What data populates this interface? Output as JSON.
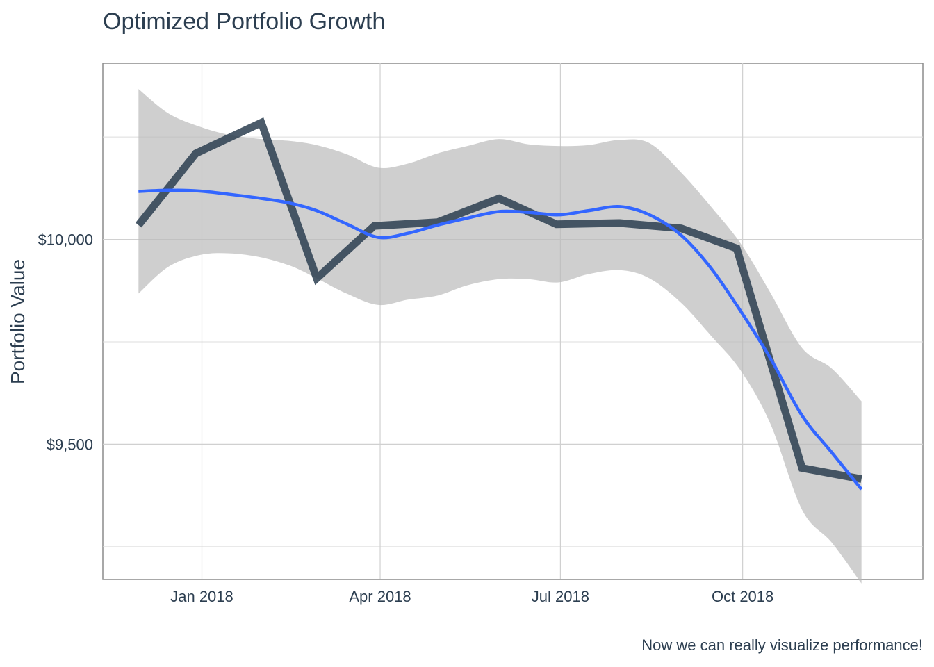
{
  "chart_data": {
    "type": "line",
    "title": "Optimized Portfolio Growth",
    "caption": "Now we can really visualize performance!",
    "xlabel": "",
    "ylabel": "Portfolio Value",
    "x_ticks": [
      {
        "label": "Jan 2018",
        "date": "2018-01-01"
      },
      {
        "label": "Apr 2018",
        "date": "2018-04-01"
      },
      {
        "label": "Jul 2018",
        "date": "2018-07-01"
      },
      {
        "label": "Oct 2018",
        "date": "2018-10-01"
      }
    ],
    "y_ticks": [
      {
        "label": "$9,500",
        "value": 9500
      },
      {
        "label": "$10,000",
        "value": 10000
      }
    ],
    "xlim": [
      "2017-11-12",
      "2018-12-31"
    ],
    "ylim": [
      9170,
      10430
    ],
    "grid": true,
    "series": [
      {
        "kind": "portfolio-line",
        "color": "#2c3e50",
        "points": [
          {
            "date": "2017-11-30",
            "value": 10035
          },
          {
            "date": "2017-12-29",
            "value": 10210
          },
          {
            "date": "2018-01-31",
            "value": 10285
          },
          {
            "date": "2018-02-28",
            "value": 9905
          },
          {
            "date": "2018-03-29",
            "value": 10033
          },
          {
            "date": "2018-04-30",
            "value": 10042
          },
          {
            "date": "2018-05-31",
            "value": 10100
          },
          {
            "date": "2018-06-29",
            "value": 10037
          },
          {
            "date": "2018-07-31",
            "value": 10040
          },
          {
            "date": "2018-08-31",
            "value": 10027
          },
          {
            "date": "2018-09-28",
            "value": 9978
          },
          {
            "date": "2018-10-31",
            "value": 9442
          },
          {
            "date": "2018-11-30",
            "value": 9415
          }
        ]
      },
      {
        "kind": "smooth-trend",
        "color": "#3366ff",
        "band_color": "#bbbbbb",
        "points": [
          {
            "date": "2017-11-30",
            "value": 10117,
            "lower": 9868,
            "upper": 10367
          },
          {
            "date": "2017-12-15",
            "value": 10120,
            "lower": 9933,
            "upper": 10308
          },
          {
            "date": "2017-12-31",
            "value": 10118,
            "lower": 9962,
            "upper": 10275
          },
          {
            "date": "2018-01-15",
            "value": 10110,
            "lower": 9966,
            "upper": 10255
          },
          {
            "date": "2018-01-31",
            "value": 10100,
            "lower": 9956,
            "upper": 10245
          },
          {
            "date": "2018-02-15",
            "value": 10088,
            "lower": 9935,
            "upper": 10240
          },
          {
            "date": "2018-02-28",
            "value": 10070,
            "lower": 9905,
            "upper": 10230
          },
          {
            "date": "2018-03-15",
            "value": 10038,
            "lower": 9868,
            "upper": 10208
          },
          {
            "date": "2018-03-31",
            "value": 10005,
            "lower": 9840,
            "upper": 10175
          },
          {
            "date": "2018-04-15",
            "value": 10015,
            "lower": 9853,
            "upper": 10185
          },
          {
            "date": "2018-04-30",
            "value": 10035,
            "lower": 9863,
            "upper": 10210
          },
          {
            "date": "2018-05-15",
            "value": 10052,
            "lower": 9888,
            "upper": 10228
          },
          {
            "date": "2018-05-31",
            "value": 10068,
            "lower": 9903,
            "upper": 10245
          },
          {
            "date": "2018-06-15",
            "value": 10066,
            "lower": 9903,
            "upper": 10232
          },
          {
            "date": "2018-06-30",
            "value": 10060,
            "lower": 9895,
            "upper": 10228
          },
          {
            "date": "2018-07-15",
            "value": 10070,
            "lower": 9915,
            "upper": 10230
          },
          {
            "date": "2018-07-31",
            "value": 10080,
            "lower": 9925,
            "upper": 10243
          },
          {
            "date": "2018-08-15",
            "value": 10060,
            "lower": 9905,
            "upper": 10235
          },
          {
            "date": "2018-08-31",
            "value": 10010,
            "lower": 9845,
            "upper": 10163
          },
          {
            "date": "2018-09-15",
            "value": 9930,
            "lower": 9765,
            "upper": 10080
          },
          {
            "date": "2018-09-30",
            "value": 9825,
            "lower": 9680,
            "upper": 9990
          },
          {
            "date": "2018-10-15",
            "value": 9710,
            "lower": 9550,
            "upper": 9870
          },
          {
            "date": "2018-10-31",
            "value": 9570,
            "lower": 9340,
            "upper": 9735
          },
          {
            "date": "2018-11-15",
            "value": 9480,
            "lower": 9260,
            "upper": 9685
          },
          {
            "date": "2018-11-30",
            "value": 9390,
            "lower": 9160,
            "upper": 9605
          }
        ]
      }
    ]
  }
}
